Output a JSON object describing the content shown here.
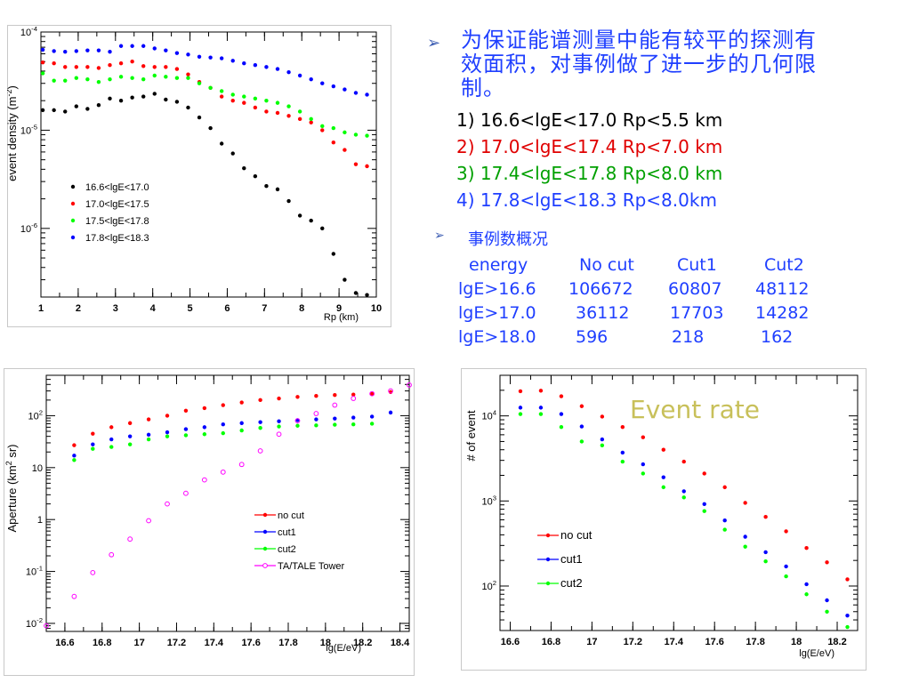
{
  "bullets": {
    "main_text": "为保证能谱测量中能有较平的探测有效面积，对事例做了进一步的几何限制。",
    "cuts": [
      {
        "text": "1) 16.6<lgE<17.0 Rp<5.5 km",
        "color": "#000000"
      },
      {
        "text": "2) 17.0<lgE<17.4 Rp<7.0 km",
        "color": "#e00000"
      },
      {
        "text": "3) 17.4<lgE<17.8 Rp<8.0 km",
        "color": "#00a000"
      },
      {
        "text": "4) 17.8<lgE<18.3 Rp<8.0km",
        "color": "#1f3fff"
      }
    ],
    "sub_text": "事例数概况",
    "table": {
      "headers": [
        "energy",
        "No cut",
        "Cut1",
        "Cut2"
      ],
      "rows": [
        [
          "lgE>16.6",
          "106672",
          "60807",
          "48112"
        ],
        [
          "lgE>17.0",
          "36112",
          "17703",
          "14282"
        ],
        [
          "lgE>18.0",
          "596",
          "218",
          "162"
        ]
      ]
    },
    "marker_icon": "arrow-bullet-icon"
  },
  "event_rate_label": "Event rate",
  "chart_data": [
    {
      "type": "scatter",
      "title": "",
      "xlabel": "Rp (km)",
      "ylabel": "event density (m^-2)",
      "xlim": [
        1,
        10
      ],
      "ylim": [
        2e-07,
        0.0001
      ],
      "yscale": "log",
      "x_ticks": [
        "1",
        "2",
        "3",
        "4",
        "5",
        "6",
        "7",
        "8",
        "9",
        "10"
      ],
      "y_ticks": [
        {
          "base": "10",
          "exp": "-4",
          "value": 0.0001
        },
        {
          "base": "10",
          "exp": "-5",
          "value": 1e-05
        },
        {
          "base": "10",
          "exp": "-6",
          "value": 1e-06
        }
      ],
      "legend_position": "bottom-left",
      "series": [
        {
          "name": "16.6<lgE<17.0",
          "color": "#000000",
          "x": [
            1.05,
            1.35,
            1.65,
            1.95,
            2.25,
            2.55,
            2.85,
            3.15,
            3.45,
            3.75,
            4.05,
            4.35,
            4.65,
            4.95,
            5.25,
            5.55,
            5.85,
            6.15,
            6.45,
            6.75,
            7.05,
            7.35,
            7.65,
            7.95,
            8.25,
            8.55,
            8.85,
            9.15,
            9.45,
            9.75
          ],
          "values": [
            1.6e-05,
            1.6e-05,
            1.55e-05,
            1.75e-05,
            1.65e-05,
            1.8e-05,
            2.1e-05,
            2e-05,
            2.15e-05,
            2.2e-05,
            2.35e-05,
            2.05e-05,
            1.95e-05,
            1.7e-05,
            1.35e-05,
            1.05e-05,
            7.3e-06,
            5.8e-06,
            4.1e-06,
            3.4e-06,
            2.7e-06,
            2.5e-06,
            1.9e-06,
            1.35e-06,
            1.2e-06,
            1e-06,
            5.5e-07,
            3e-07,
            2.2e-07,
            2.1e-07
          ]
        },
        {
          "name": "17.0<lgE<17.5",
          "color": "#ff0000",
          "x": [
            1.05,
            1.35,
            1.65,
            1.95,
            2.25,
            2.55,
            2.85,
            3.15,
            3.45,
            3.75,
            4.05,
            4.35,
            4.65,
            4.95,
            5.25,
            5.55,
            5.85,
            6.15,
            6.45,
            6.75,
            7.05,
            7.35,
            7.65,
            7.95,
            8.25,
            8.55,
            8.85,
            9.15,
            9.45,
            9.75
          ],
          "values": [
            4.9e-05,
            4.8e-05,
            4.4e-05,
            4.4e-05,
            4.4e-05,
            4.3e-05,
            4.6e-05,
            4.8e-05,
            5e-05,
            4.5e-05,
            4.4e-05,
            4.4e-05,
            4.2e-05,
            3.7e-05,
            3.1e-05,
            2.7e-05,
            2.2e-05,
            2e-05,
            1.9e-05,
            1.7e-05,
            1.55e-05,
            1.5e-05,
            1.4e-05,
            1.3e-05,
            1.2e-05,
            1e-05,
            7.5e-06,
            6.3e-06,
            4.5e-06,
            4.3e-06
          ]
        },
        {
          "name": "17.5<lgE<17.8",
          "color": "#00ff00",
          "x": [
            1.05,
            1.35,
            1.65,
            1.95,
            2.25,
            2.55,
            2.85,
            3.15,
            3.45,
            3.75,
            4.05,
            4.35,
            4.65,
            4.95,
            5.25,
            5.55,
            5.85,
            6.15,
            6.45,
            6.75,
            7.05,
            7.35,
            7.65,
            7.95,
            8.25,
            8.55,
            8.85,
            9.15,
            9.45,
            9.75
          ],
          "values": [
            3.8e-05,
            3.2e-05,
            3.2e-05,
            3.4e-05,
            3.3e-05,
            3.1e-05,
            3.3e-05,
            3.5e-05,
            3.4e-05,
            3.3e-05,
            3.6e-05,
            3.5e-05,
            3.4e-05,
            3.4e-05,
            3e-05,
            2.7e-05,
            2.5e-05,
            2.3e-05,
            2.2e-05,
            2.1e-05,
            2e-05,
            1.9e-05,
            1.75e-05,
            1.55e-05,
            1.3e-05,
            1.1e-05,
            1.05e-05,
            9.5e-06,
            9e-06,
            8.8e-06
          ]
        },
        {
          "name": "17.8<lgE<18.3",
          "color": "#0000ff",
          "x": [
            1.05,
            1.35,
            1.65,
            1.95,
            2.25,
            2.55,
            2.85,
            3.15,
            3.45,
            3.75,
            4.05,
            4.35,
            4.65,
            4.95,
            5.25,
            5.55,
            5.85,
            6.15,
            6.45,
            6.75,
            7.05,
            7.35,
            7.65,
            7.95,
            8.25,
            8.55,
            8.85,
            9.15,
            9.45,
            9.75
          ],
          "values": [
            6.6e-05,
            6.4e-05,
            6.3e-05,
            6.4e-05,
            6.5e-05,
            6.5e-05,
            6.3e-05,
            7.2e-05,
            7.2e-05,
            7.2e-05,
            6.8e-05,
            6.5e-05,
            6.1e-05,
            5.9e-05,
            5.6e-05,
            5.5e-05,
            5.4e-05,
            5.1e-05,
            4.8e-05,
            4.6e-05,
            4.4e-05,
            4.2e-05,
            3.9e-05,
            3.6e-05,
            3.3e-05,
            3e-05,
            2.8e-05,
            2.6e-05,
            2.4e-05,
            2.3e-05
          ]
        }
      ]
    },
    {
      "type": "scatter",
      "title": "",
      "xlabel": "lg(E/eV)",
      "ylabel": "Aperture (km^2 sr)",
      "xlim": [
        16.5,
        18.45
      ],
      "ylim": [
        0.007,
        600
      ],
      "yscale": "log",
      "x_ticks": [
        "16.6",
        "16.8",
        "17",
        "17.2",
        "17.4",
        "17.6",
        "17.8",
        "18",
        "18.2",
        "18.4"
      ],
      "y_ticks": [
        {
          "base": "10",
          "exp": "-2",
          "value": 0.01
        },
        {
          "base": "10",
          "exp": "-1",
          "value": 0.1
        },
        {
          "base": "1",
          "exp": "",
          "value": 1
        },
        {
          "base": "10",
          "exp": "",
          "value": 10
        },
        {
          "base": "10",
          "exp": "2",
          "value": 100
        }
      ],
      "legend_position": "bottom-right",
      "series": [
        {
          "name": "no cut",
          "color": "#ff0000",
          "marker": "dot",
          "x": [
            16.65,
            16.75,
            16.85,
            16.95,
            17.05,
            17.15,
            17.25,
            17.35,
            17.45,
            17.55,
            17.65,
            17.75,
            17.85,
            17.95,
            18.05,
            18.15,
            18.25,
            18.35
          ],
          "values": [
            27,
            45,
            60,
            72,
            85,
            100,
            125,
            140,
            160,
            180,
            200,
            215,
            230,
            240,
            250,
            255,
            265,
            285
          ]
        },
        {
          "name": "cut1",
          "color": "#0000ff",
          "marker": "dot",
          "x": [
            16.65,
            16.75,
            16.85,
            16.95,
            17.05,
            17.15,
            17.25,
            17.35,
            17.45,
            17.55,
            17.65,
            17.75,
            17.85,
            17.95,
            18.05,
            18.15,
            18.25,
            18.35
          ],
          "values": [
            17,
            28,
            35,
            40,
            43,
            48,
            55,
            60,
            68,
            72,
            75,
            78,
            82,
            85,
            88,
            92,
            96,
            115
          ]
        },
        {
          "name": "cut2",
          "color": "#00ff00",
          "marker": "dot",
          "x": [
            16.65,
            16.75,
            16.85,
            16.95,
            17.05,
            17.15,
            17.25,
            17.35,
            17.45,
            17.55,
            17.65,
            17.75,
            17.85,
            17.95,
            18.05,
            18.15,
            18.25
          ],
          "values": [
            14,
            23,
            25,
            28,
            35,
            40,
            42,
            44,
            46,
            52,
            58,
            62,
            64,
            65,
            67,
            68,
            70
          ]
        },
        {
          "name": "TA/TALE Tower",
          "color": "#ff00ff",
          "marker": "ring",
          "x": [
            16.5,
            16.65,
            16.75,
            16.85,
            16.95,
            17.05,
            17.15,
            17.25,
            17.35,
            17.45,
            17.55,
            17.65,
            17.75,
            17.85,
            17.95,
            18.05,
            18.15,
            18.25,
            18.35,
            18.45
          ],
          "values": [
            0.009,
            0.033,
            0.095,
            0.21,
            0.42,
            0.95,
            2.0,
            3.2,
            5.8,
            8.2,
            11.5,
            21,
            44,
            80,
            110,
            160,
            215,
            265,
            300,
            390
          ]
        }
      ]
    },
    {
      "type": "scatter",
      "title": "",
      "xlabel": "lg(E/eV)",
      "ylabel": "# of event",
      "xlim": [
        16.55,
        18.3
      ],
      "ylim": [
        30,
        30000
      ],
      "yscale": "log",
      "x_ticks": [
        "16.6",
        "16.8",
        "17",
        "17.2",
        "17.4",
        "17.6",
        "17.8",
        "18",
        "18.2"
      ],
      "y_ticks": [
        {
          "base": "10",
          "exp": "2",
          "value": 100
        },
        {
          "base": "10",
          "exp": "3",
          "value": 1000
        },
        {
          "base": "10",
          "exp": "4",
          "value": 10000
        }
      ],
      "legend_position": "bottom-left",
      "series": [
        {
          "name": "no cut",
          "color": "#ff0000",
          "x": [
            16.65,
            16.75,
            16.85,
            16.95,
            17.05,
            17.15,
            17.25,
            17.35,
            17.45,
            17.55,
            17.65,
            17.75,
            17.85,
            17.95,
            18.05,
            18.15,
            18.25
          ],
          "values": [
            19500,
            19800,
            17000,
            13000,
            9800,
            7400,
            5600,
            4000,
            2900,
            2100,
            1450,
            950,
            650,
            440,
            280,
            190,
            120
          ]
        },
        {
          "name": "cut1",
          "color": "#0000ff",
          "x": [
            16.65,
            16.75,
            16.85,
            16.95,
            17.05,
            17.15,
            17.25,
            17.35,
            17.45,
            17.55,
            17.65,
            17.75,
            17.85,
            17.95,
            18.05,
            18.15,
            18.25
          ],
          "values": [
            12500,
            12500,
            10500,
            7500,
            5300,
            3700,
            2700,
            1900,
            1300,
            920,
            590,
            380,
            250,
            170,
            105,
            68,
            45
          ]
        },
        {
          "name": "cut2",
          "color": "#00ff00",
          "x": [
            16.65,
            16.75,
            16.85,
            16.95,
            17.05,
            17.15,
            17.25,
            17.35,
            17.45,
            17.55,
            17.65,
            17.75,
            17.85,
            17.95,
            18.05,
            18.15,
            18.25
          ],
          "values": [
            10500,
            10500,
            7400,
            5000,
            4500,
            2900,
            2100,
            1450,
            1100,
            760,
            460,
            290,
            195,
            130,
            80,
            50,
            33
          ]
        }
      ]
    }
  ]
}
